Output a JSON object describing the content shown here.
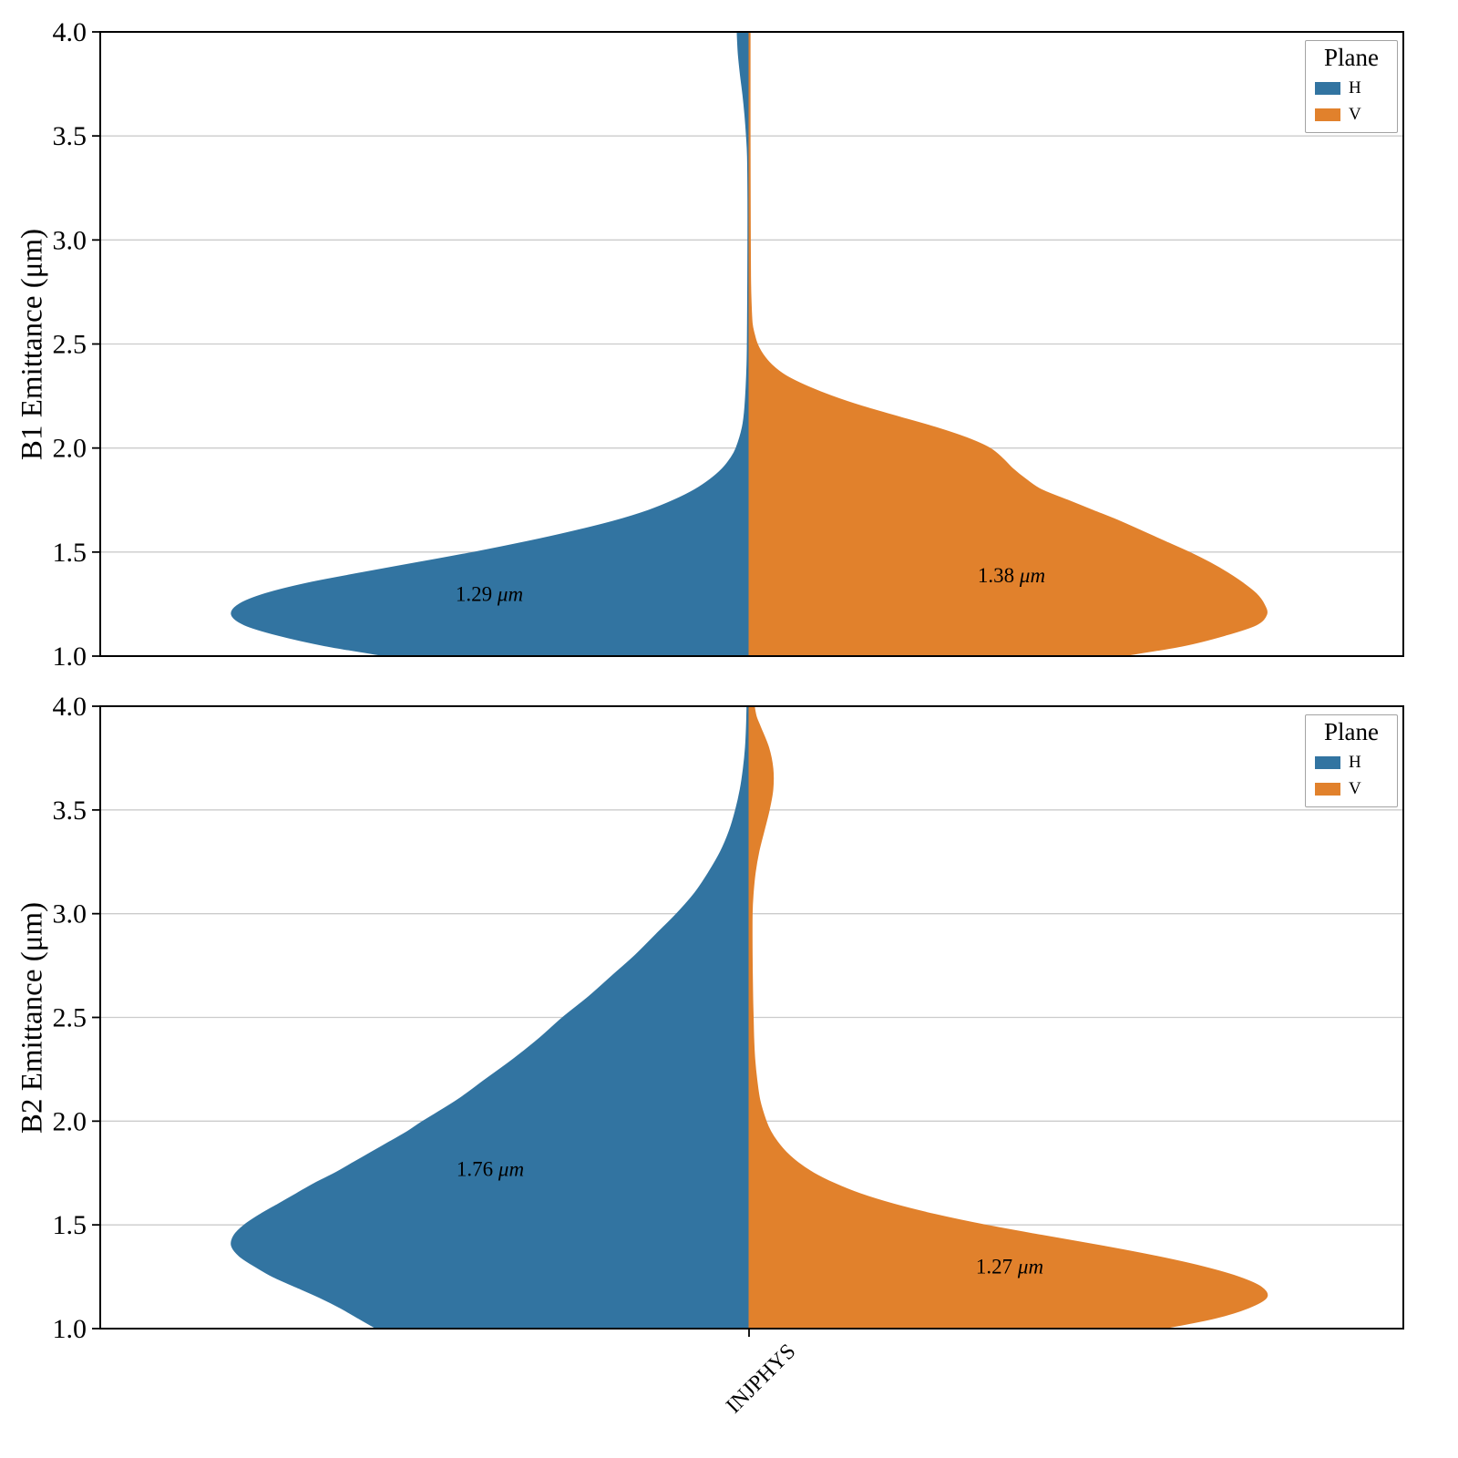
{
  "figure": {
    "x_tick_label": "INJPHYS",
    "legend": {
      "title": "Plane",
      "entries": [
        {
          "label": "H",
          "color": "#3274a1"
        },
        {
          "label": "V",
          "color": "#e1812c"
        }
      ]
    }
  },
  "chart_data": {
    "type": "violin-split",
    "x_categories": [
      "INJPHYS"
    ],
    "ylim": [
      1.0,
      4.0
    ],
    "yticks": [
      4.0,
      3.5,
      3.0,
      2.5,
      2.0,
      1.5,
      1.0
    ],
    "grid": "horizontal",
    "legend_position": "upper-right",
    "panels": [
      {
        "ylabel": "B1 Emittance (μm)",
        "series": [
          {
            "name": "H",
            "side": "left",
            "color": "#3274a1",
            "mean_um": 1.29,
            "annotation": {
              "value": "1.29",
              "unit": "μm",
              "y": 1.3,
              "x_offset": -285
            },
            "profile": [
              [
                1.0,
                0.7
              ],
              [
                1.05,
                0.82
              ],
              [
                1.1,
                0.91
              ],
              [
                1.15,
                0.975
              ],
              [
                1.2,
                1.0
              ],
              [
                1.25,
                0.985
              ],
              [
                1.3,
                0.935
              ],
              [
                1.35,
                0.855
              ],
              [
                1.4,
                0.75
              ],
              [
                1.45,
                0.64
              ],
              [
                1.5,
                0.53
              ],
              [
                1.55,
                0.43
              ],
              [
                1.6,
                0.34
              ],
              [
                1.65,
                0.26
              ],
              [
                1.7,
                0.195
              ],
              [
                1.75,
                0.145
              ],
              [
                1.8,
                0.105
              ],
              [
                1.85,
                0.075
              ],
              [
                1.9,
                0.052
              ],
              [
                1.95,
                0.036
              ],
              [
                2.0,
                0.025
              ],
              [
                2.1,
                0.013
              ],
              [
                2.2,
                0.008
              ],
              [
                2.4,
                0.004
              ],
              [
                2.6,
                0.003
              ],
              [
                2.8,
                0.0025
              ],
              [
                3.0,
                0.0022
              ],
              [
                3.2,
                0.0022
              ],
              [
                3.4,
                0.003
              ],
              [
                3.5,
                0.005
              ],
              [
                3.6,
                0.008
              ],
              [
                3.7,
                0.012
              ],
              [
                3.8,
                0.017
              ],
              [
                3.9,
                0.021
              ],
              [
                4.0,
                0.023
              ]
            ]
          },
          {
            "name": "V",
            "side": "right",
            "color": "#e1812c",
            "mean_um": 1.38,
            "annotation": {
              "value": "1.38",
              "unit": "μm",
              "y": 1.39,
              "x_offset": 288
            },
            "profile": [
              [
                1.0,
                0.72
              ],
              [
                1.05,
                0.84
              ],
              [
                1.1,
                0.92
              ],
              [
                1.15,
                0.98
              ],
              [
                1.2,
                1.0
              ],
              [
                1.25,
                0.995
              ],
              [
                1.3,
                0.98
              ],
              [
                1.35,
                0.955
              ],
              [
                1.4,
                0.925
              ],
              [
                1.45,
                0.89
              ],
              [
                1.5,
                0.85
              ],
              [
                1.55,
                0.805
              ],
              [
                1.6,
                0.76
              ],
              [
                1.65,
                0.715
              ],
              [
                1.7,
                0.665
              ],
              [
                1.75,
                0.615
              ],
              [
                1.8,
                0.565
              ],
              [
                1.85,
                0.535
              ],
              [
                1.9,
                0.51
              ],
              [
                1.95,
                0.49
              ],
              [
                2.0,
                0.465
              ],
              [
                2.05,
                0.42
              ],
              [
                2.1,
                0.36
              ],
              [
                2.15,
                0.29
              ],
              [
                2.2,
                0.22
              ],
              [
                2.25,
                0.16
              ],
              [
                2.3,
                0.11
              ],
              [
                2.35,
                0.07
              ],
              [
                2.4,
                0.044
              ],
              [
                2.45,
                0.027
              ],
              [
                2.5,
                0.016
              ],
              [
                2.55,
                0.01
              ],
              [
                2.6,
                0.006
              ],
              [
                2.7,
                0.004
              ],
              [
                2.8,
                0.003
              ],
              [
                3.0,
                0.0025
              ],
              [
                3.5,
                0.002
              ],
              [
                4.0,
                0.002
              ]
            ]
          }
        ]
      },
      {
        "ylabel": "B2 Emittance (μm)",
        "series": [
          {
            "name": "H",
            "side": "left",
            "color": "#3274a1",
            "mean_um": 1.76,
            "annotation": {
              "value": "1.76",
              "unit": "μm",
              "y": 1.77,
              "x_offset": -284
            },
            "profile": [
              [
                1.0,
                0.72
              ],
              [
                1.05,
                0.755
              ],
              [
                1.1,
                0.79
              ],
              [
                1.15,
                0.83
              ],
              [
                1.2,
                0.875
              ],
              [
                1.25,
                0.92
              ],
              [
                1.3,
                0.955
              ],
              [
                1.35,
                0.985
              ],
              [
                1.4,
                1.0
              ],
              [
                1.45,
                0.995
              ],
              [
                1.5,
                0.975
              ],
              [
                1.55,
                0.945
              ],
              [
                1.6,
                0.91
              ],
              [
                1.65,
                0.875
              ],
              [
                1.7,
                0.84
              ],
              [
                1.75,
                0.8
              ],
              [
                1.8,
                0.765
              ],
              [
                1.85,
                0.73
              ],
              [
                1.9,
                0.695
              ],
              [
                1.95,
                0.66
              ],
              [
                2.0,
                0.63
              ],
              [
                2.1,
                0.565
              ],
              [
                2.2,
                0.51
              ],
              [
                2.3,
                0.455
              ],
              [
                2.4,
                0.405
              ],
              [
                2.5,
                0.36
              ],
              [
                2.6,
                0.31
              ],
              [
                2.7,
                0.265
              ],
              [
                2.8,
                0.22
              ],
              [
                2.9,
                0.18
              ],
              [
                3.0,
                0.14
              ],
              [
                3.1,
                0.105
              ],
              [
                3.2,
                0.078
              ],
              [
                3.3,
                0.055
              ],
              [
                3.4,
                0.038
              ],
              [
                3.5,
                0.026
              ],
              [
                3.6,
                0.017
              ],
              [
                3.7,
                0.011
              ],
              [
                3.8,
                0.007
              ],
              [
                3.9,
                0.005
              ],
              [
                4.0,
                0.004
              ]
            ]
          },
          {
            "name": "V",
            "side": "right",
            "color": "#e1812c",
            "mean_um": 1.27,
            "annotation": {
              "value": "1.27",
              "unit": "μm",
              "y": 1.3,
              "x_offset": 286
            },
            "profile": [
              [
                1.0,
                0.8
              ],
              [
                1.05,
                0.9
              ],
              [
                1.1,
                0.965
              ],
              [
                1.15,
                1.0
              ],
              [
                1.2,
                0.99
              ],
              [
                1.25,
                0.945
              ],
              [
                1.3,
                0.875
              ],
              [
                1.35,
                0.785
              ],
              [
                1.4,
                0.68
              ],
              [
                1.45,
                0.565
              ],
              [
                1.5,
                0.455
              ],
              [
                1.55,
                0.36
              ],
              [
                1.6,
                0.28
              ],
              [
                1.65,
                0.215
              ],
              [
                1.7,
                0.165
              ],
              [
                1.75,
                0.125
              ],
              [
                1.8,
                0.095
              ],
              [
                1.85,
                0.072
              ],
              [
                1.9,
                0.055
              ],
              [
                1.95,
                0.042
              ],
              [
                2.0,
                0.033
              ],
              [
                2.1,
                0.021
              ],
              [
                2.2,
                0.015
              ],
              [
                2.3,
                0.011
              ],
              [
                2.4,
                0.009
              ],
              [
                2.5,
                0.008
              ],
              [
                2.6,
                0.007
              ],
              [
                2.8,
                0.006
              ],
              [
                3.0,
                0.006
              ],
              [
                3.1,
                0.008
              ],
              [
                3.2,
                0.012
              ],
              [
                3.3,
                0.019
              ],
              [
                3.4,
                0.029
              ],
              [
                3.5,
                0.039
              ],
              [
                3.6,
                0.046
              ],
              [
                3.7,
                0.046
              ],
              [
                3.8,
                0.038
              ],
              [
                3.9,
                0.022
              ],
              [
                3.95,
                0.014
              ],
              [
                4.0,
                0.01
              ]
            ]
          }
        ]
      }
    ]
  }
}
